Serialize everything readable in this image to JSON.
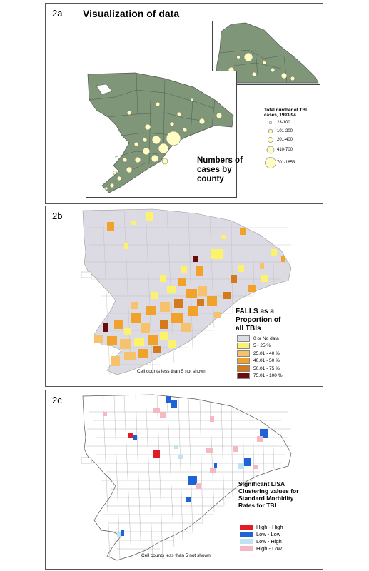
{
  "panel_a": {
    "label": "2a",
    "title": "Visualization of data",
    "legend_title": "Total number of TBI cases, 1993-94",
    "legend_items": [
      "23-100",
      "101-200",
      "201-400",
      "410-700",
      "701-1653"
    ],
    "caption": "Numbers of cases by county",
    "colors": {
      "land": "#7f9679",
      "circle": "#fffdc2",
      "border": "#555555"
    }
  },
  "panel_b": {
    "label": "2b",
    "caption": "FALLS as a Proportion of all TBIs",
    "legend_items": [
      {
        "label": "0 or No data",
        "color": "#dcdbe3"
      },
      {
        "label": "5 - 25 %",
        "color": "#fcf26b"
      },
      {
        "label": "25.01 - 40  %",
        "color": "#f6c36c"
      },
      {
        "label": "40.01 - 50 %",
        "color": "#f0a22b"
      },
      {
        "label": "50.01 - 75 %",
        "color": "#d57a1a"
      },
      {
        "label": "75.01 - 100 %",
        "color": "#6a0b10"
      }
    ],
    "note": "Cell counts less than 5 not shown"
  },
  "panel_c": {
    "label": "2c",
    "caption": "Significant LISA Clustering values for Standard Morbidity Rates for TBI",
    "legend_items": [
      {
        "label": "High - High",
        "color": "#e21c24"
      },
      {
        "label": "Low - Low",
        "color": "#1d63d6"
      },
      {
        "label": "Low - High",
        "color": "#bfe3f2"
      },
      {
        "label": "High - Low",
        "color": "#f5b8c2"
      }
    ],
    "note": "Cell counts less than 5 not shown"
  }
}
